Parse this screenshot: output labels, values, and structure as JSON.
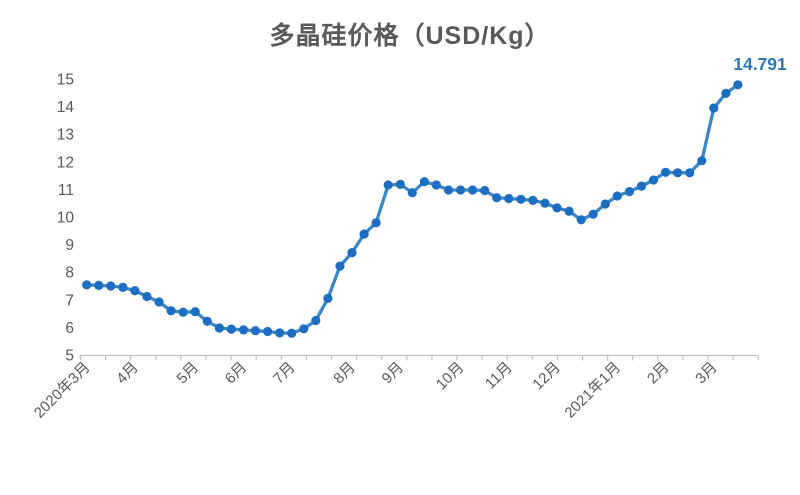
{
  "title": "多晶硅价格（USD/Kg）",
  "colors": {
    "line": "#3B86C6",
    "marker": "#1D6EC0",
    "data_label": "#2E75B6",
    "axis_line": "#BFBFBF",
    "axis_text": "#595959",
    "title_text": "#595959",
    "background": "#FFFFFF"
  },
  "chart_data": {
    "type": "line",
    "title": "多晶硅价格（USD/Kg）",
    "unit": "USD/Kg",
    "grid": false,
    "legend_position": "none",
    "ylim": [
      5,
      15
    ],
    "y_ticks": [
      5,
      6,
      7,
      8,
      9,
      10,
      11,
      12,
      13,
      14,
      15
    ],
    "x_axis_note": "weekly data, Mar 2020 - Mar 2021",
    "months": [
      {
        "label": "2020年3月",
        "week_index": 0
      },
      {
        "label": "4月",
        "week_index": 4
      },
      {
        "label": "5月",
        "week_index": 9
      },
      {
        "label": "6月",
        "week_index": 13
      },
      {
        "label": "7月",
        "week_index": 17
      },
      {
        "label": "8月",
        "week_index": 22
      },
      {
        "label": "9月",
        "week_index": 26
      },
      {
        "label": "10月",
        "week_index": 31
      },
      {
        "label": "11月",
        "week_index": 35
      },
      {
        "label": "12月",
        "week_index": 39
      },
      {
        "label": "2021年1月",
        "week_index": 44
      },
      {
        "label": "2月",
        "week_index": 48
      },
      {
        "label": "3月",
        "week_index": 52
      }
    ],
    "values": [
      7.54,
      7.52,
      7.5,
      7.45,
      7.33,
      7.12,
      6.92,
      6.6,
      6.55,
      6.57,
      6.22,
      5.98,
      5.94,
      5.91,
      5.88,
      5.85,
      5.8,
      5.79,
      5.95,
      6.25,
      7.05,
      8.22,
      8.71,
      9.38,
      9.79,
      11.16,
      11.18,
      10.88,
      11.28,
      11.16,
      10.98,
      10.98,
      10.98,
      10.96,
      10.7,
      10.67,
      10.64,
      10.6,
      10.5,
      10.33,
      10.21,
      9.9,
      10.1,
      10.47,
      10.76,
      10.92,
      11.12,
      11.34,
      11.62,
      11.6,
      11.6,
      12.04,
      13.95,
      14.48,
      14.791
    ],
    "last_point_label": "14.791"
  }
}
